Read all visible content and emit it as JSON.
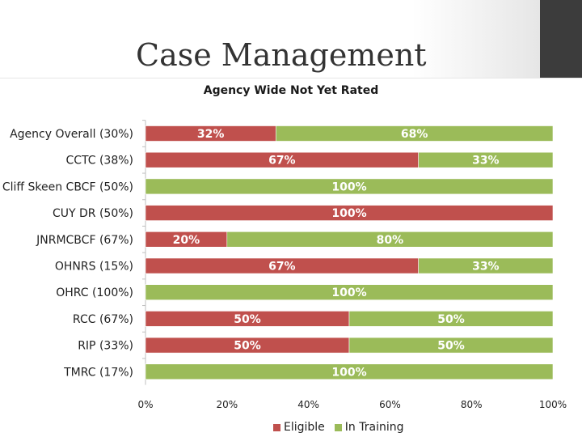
{
  "slide": {
    "title": "Case Management"
  },
  "chart_data": {
    "type": "bar",
    "orientation": "horizontal",
    "stacked": true,
    "title": "Agency Wide Not Yet Rated",
    "categories": [
      "Agency Overall (30%)",
      "CCTC (38%)",
      "Cliff Skeen CBCF (50%)",
      "CUY DR (50%)",
      "JNRMCBCF (67%)",
      "OHNRS (15%)",
      "OHRC (100%)",
      "RCC (67%)",
      "RIP (33%)",
      "TMRC (17%)"
    ],
    "series": [
      {
        "name": "Eligible",
        "color": "#c0504d",
        "values": [
          32,
          67,
          0,
          100,
          20,
          67,
          0,
          50,
          50,
          0
        ],
        "labels": [
          "32%",
          "67%",
          "",
          "100%",
          "20%",
          "67%",
          "",
          "50%",
          "50%",
          ""
        ]
      },
      {
        "name": "In Training",
        "color": "#9bbb59",
        "values": [
          68,
          33,
          100,
          0,
          80,
          33,
          100,
          50,
          50,
          100
        ],
        "labels": [
          "68%",
          "33%",
          "100%",
          "",
          "80%",
          "33%",
          "100%",
          "50%",
          "50%",
          "100%"
        ]
      }
    ],
    "xlim": [
      0,
      100
    ],
    "x_ticks": [
      "0%",
      "20%",
      "40%",
      "60%",
      "80%",
      "100%"
    ],
    "legend_position": "bottom",
    "grid": false
  }
}
